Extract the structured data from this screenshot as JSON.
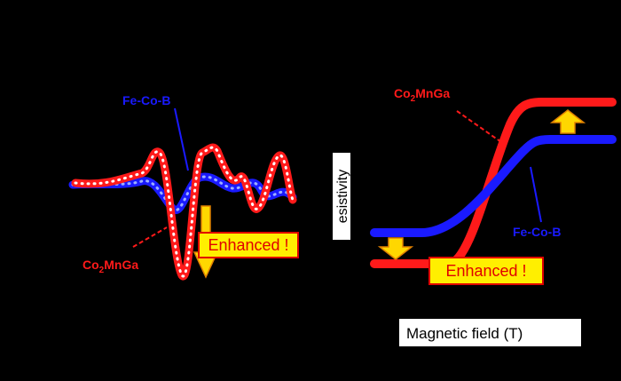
{
  "left_panel": {
    "fe_co_b_label": "Fe-Co-B",
    "co2mnga_label": {
      "base1": "Co",
      "sub": "2",
      "base2": "MnGa"
    },
    "enhanced_label": "Enhanced !"
  },
  "right_panel": {
    "co2mnga_label": {
      "base1": "Co",
      "sub": "2",
      "base2": "MnGa"
    },
    "fe_co_b_label": "Fe-Co-B",
    "enhanced_label": "Enhanced !",
    "y_axis_label": "esistivity",
    "x_axis_label": "Magnetic field (T)"
  }
}
